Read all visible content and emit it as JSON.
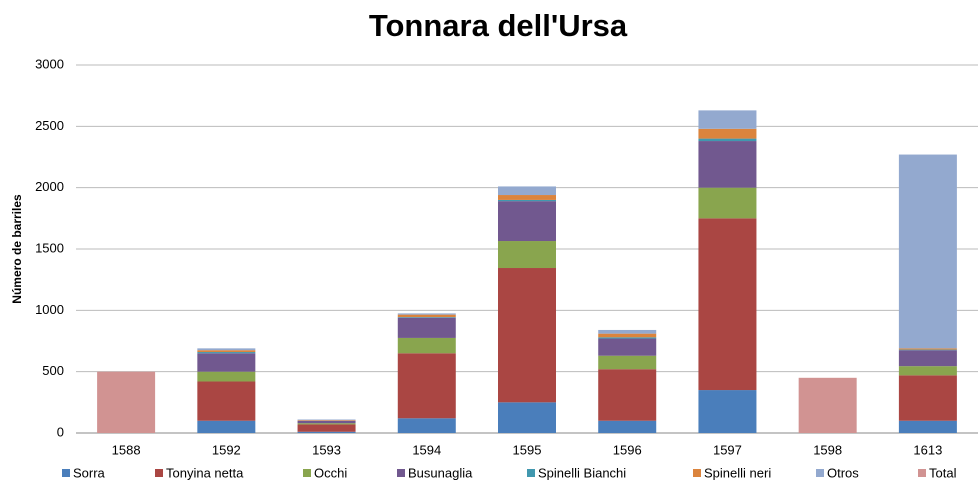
{
  "chart_data": {
    "type": "bar",
    "stacked": true,
    "title": "Tonnara dell'Ursa",
    "y_label": "Número de barriles",
    "categories": [
      "1588",
      "1592",
      "1593",
      "1594",
      "1595",
      "1596",
      "1597",
      "1598",
      "1613"
    ],
    "series": [
      {
        "name": "Sorra",
        "color": "#4a7ebb",
        "values": [
          null,
          100,
          10,
          120,
          250,
          100,
          350,
          null,
          100
        ]
      },
      {
        "name": "Tonyina netta",
        "color": "#aa4643",
        "values": [
          null,
          320,
          60,
          530,
          1095,
          420,
          1400,
          null,
          370
        ]
      },
      {
        "name": "Occhi",
        "color": "#89a54e",
        "values": [
          null,
          80,
          10,
          125,
          220,
          110,
          250,
          null,
          75
        ]
      },
      {
        "name": "Busunaglia",
        "color": "#71588f",
        "values": [
          null,
          150,
          20,
          165,
          325,
          140,
          380,
          null,
          130
        ]
      },
      {
        "name": "Spinelli Bianchi",
        "color": "#4198af",
        "values": [
          null,
          10,
          0,
          5,
          10,
          10,
          20,
          null,
          5
        ]
      },
      {
        "name": "Spinelli neri",
        "color": "#db843d",
        "values": [
          null,
          15,
          5,
          20,
          40,
          30,
          80,
          null,
          10
        ]
      },
      {
        "name": "Otros",
        "color": "#93a9cf",
        "values": [
          null,
          15,
          5,
          10,
          70,
          30,
          150,
          null,
          1580
        ]
      },
      {
        "name": "Total",
        "color": "#d19392",
        "values": [
          500,
          null,
          null,
          null,
          null,
          null,
          null,
          450,
          null
        ]
      }
    ],
    "ylim": [
      0,
      3000
    ],
    "yticks": [
      0,
      500,
      1000,
      1500,
      2000,
      2500,
      3000
    ],
    "grid": true,
    "legend": "bottom"
  }
}
